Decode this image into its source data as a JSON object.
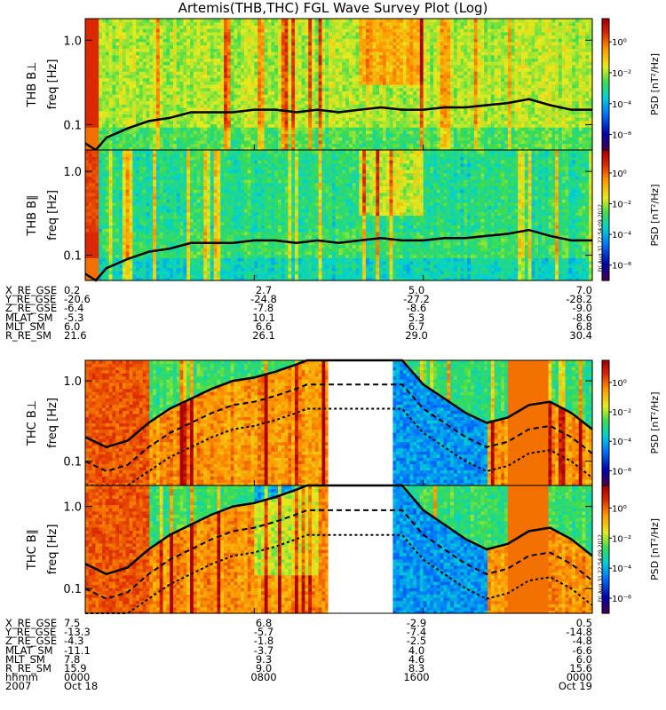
{
  "title": "Artemis(THB,THC) FGL Wave Survey Plot (Log)",
  "colorbar": {
    "label": "PSD [nT²/Hz]",
    "ticks": [
      "10⁰",
      "10⁻²",
      "10⁻⁴",
      "10⁻⁶"
    ],
    "tick_exponents": [
      0,
      -2,
      -4,
      -6
    ],
    "range_exponents": [
      -7,
      1.5
    ]
  },
  "panels": [
    {
      "probe_label": "THB B⊥",
      "ylabel": "freq [Hz]"
    },
    {
      "probe_label": "THB B∥",
      "ylabel": "freq [Hz]"
    },
    {
      "probe_label": "THC B⊥",
      "ylabel": "freq [Hz]"
    },
    {
      "probe_label": "THC B∥",
      "ylabel": "freq [Hz]"
    }
  ],
  "yticks": [
    "1.0",
    "0.1"
  ],
  "timestamp": "Fri Aug 31 22:54:09 2012",
  "thb_ephemeris": {
    "labels": [
      "X_RE_GSE",
      "Y_RE_GSE",
      "Z_RE_GSE",
      "MLAT_SM",
      "MLT_SM",
      "R_RE_SM"
    ],
    "columns": [
      [
        "0.2",
        "-20.6",
        "-6.4",
        "-5.3",
        "6.0",
        "21.6"
      ],
      [
        "2.7",
        "-24.8",
        "-7.8",
        "10.1",
        "6.6",
        "26.1"
      ],
      [
        "5.0",
        "-27.2",
        "-8.6",
        "5.3",
        "6.7",
        "29.0"
      ],
      [
        "7.0",
        "-28.2",
        "-9.0",
        "-8.6",
        "6.8",
        "30.4"
      ]
    ]
  },
  "thc_ephemeris": {
    "labels": [
      "X_RE_GSE",
      "Y_RE_GSE",
      "Z_RE_GSE",
      "MLAT_SM",
      "MLT_SM",
      "R_RE_SM",
      "hhmm",
      "2007"
    ],
    "columns": [
      [
        "7.5",
        "-13.3",
        "-4.3",
        "-11.1",
        "7.8",
        "15.9",
        "0000",
        "Oct 18"
      ],
      [
        "6.8",
        "-5.7",
        "-1.8",
        "-3.7",
        "9.3",
        "9.0",
        "0800",
        ""
      ],
      [
        "-2.9",
        "-7.4",
        "-2.5",
        "4.0",
        "4.6",
        "8.3",
        "1600",
        ""
      ],
      [
        "0.5",
        "-14.8",
        "-4.8",
        "-6.6",
        "6.0",
        "15.6",
        "0000",
        "Oct 19"
      ]
    ]
  },
  "chart_data": {
    "type": "heatmap",
    "title": "Artemis(THB,THC) FGL Wave Survey Plot (Log)",
    "time_ticks": [
      "0000",
      "0800",
      "1600",
      "0000"
    ],
    "date_ticks": [
      "Oct 18",
      "",
      "",
      "Oct 19"
    ],
    "time_range_hours": [
      0,
      24
    ],
    "freq_range_hz": [
      0.05,
      1.8
    ],
    "yscale": "log",
    "zscale": "log",
    "thc_data_gap_hours": [
      11.5,
      14.5
    ],
    "thb_gyrofrequency_hz": [
      [
        0.0,
        0.06
      ],
      [
        0.5,
        0.05
      ],
      [
        1.0,
        0.07
      ],
      [
        2.0,
        0.09
      ],
      [
        3.0,
        0.11
      ],
      [
        4.0,
        0.12
      ],
      [
        5.0,
        0.14
      ],
      [
        6.0,
        0.14
      ],
      [
        7.0,
        0.14
      ],
      [
        8.0,
        0.15
      ],
      [
        9.0,
        0.15
      ],
      [
        10.0,
        0.14
      ],
      [
        11.0,
        0.15
      ],
      [
        12.0,
        0.14
      ],
      [
        13.0,
        0.15
      ],
      [
        14.0,
        0.16
      ],
      [
        15.0,
        0.15
      ],
      [
        16.0,
        0.15
      ],
      [
        17.0,
        0.16
      ],
      [
        18.0,
        0.16
      ],
      [
        19.0,
        0.17
      ],
      [
        20.0,
        0.18
      ],
      [
        21.0,
        0.2
      ],
      [
        22.0,
        0.17
      ],
      [
        23.0,
        0.15
      ],
      [
        24.0,
        0.15
      ]
    ],
    "thc_gyrofrequency_hz": [
      [
        0.0,
        0.2
      ],
      [
        1.0,
        0.15
      ],
      [
        2.0,
        0.18
      ],
      [
        3.0,
        0.3
      ],
      [
        4.0,
        0.45
      ],
      [
        5.0,
        0.6
      ],
      [
        6.0,
        0.8
      ],
      [
        7.0,
        1.0
      ],
      [
        8.0,
        1.1
      ],
      [
        9.0,
        1.3
      ],
      [
        10.0,
        1.6
      ],
      [
        10.5,
        1.8
      ],
      [
        15.0,
        1.8
      ],
      [
        16.0,
        0.9
      ],
      [
        17.0,
        0.6
      ],
      [
        18.0,
        0.4
      ],
      [
        19.0,
        0.3
      ],
      [
        20.0,
        0.35
      ],
      [
        21.0,
        0.5
      ],
      [
        22.0,
        0.55
      ],
      [
        23.0,
        0.4
      ],
      [
        24.0,
        0.25
      ]
    ]
  }
}
